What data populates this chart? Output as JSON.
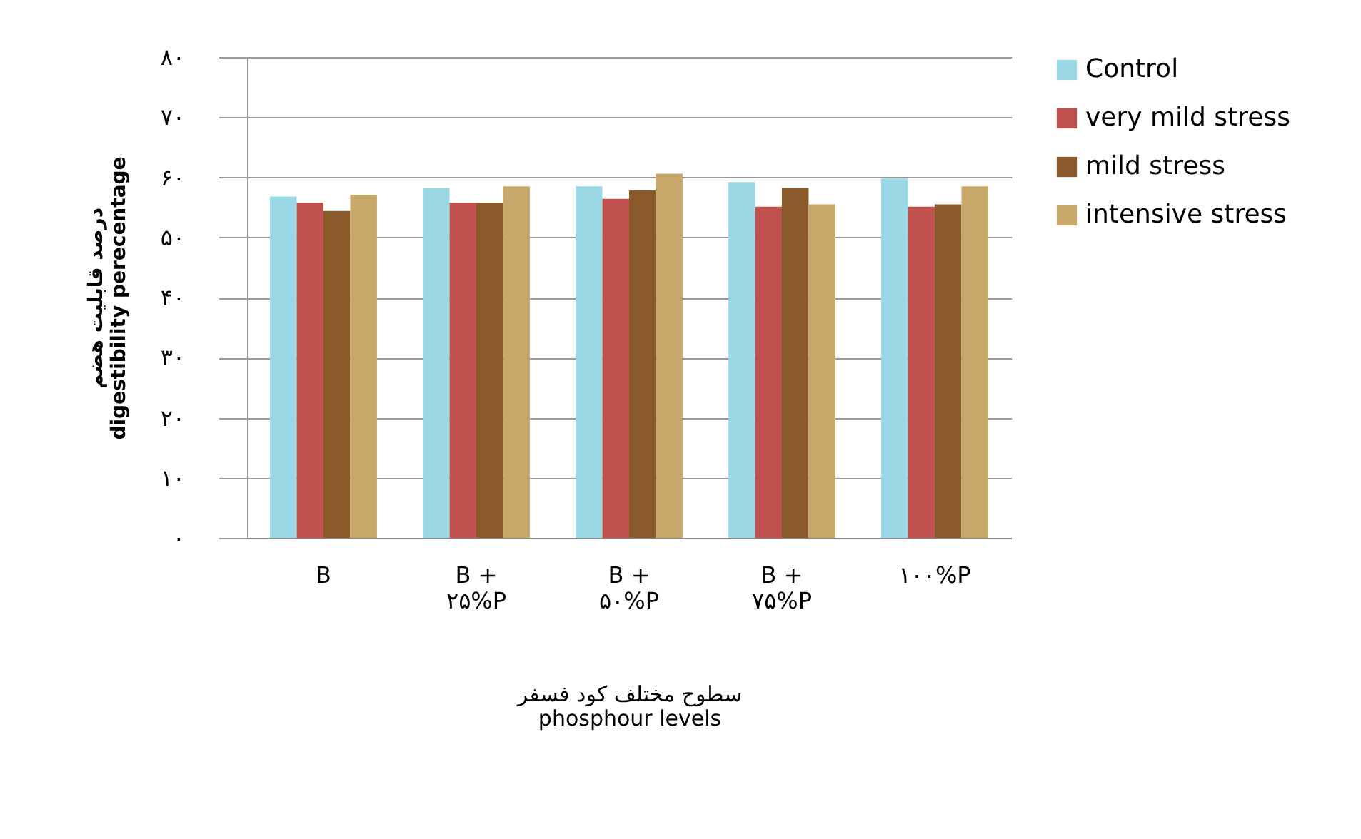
{
  "chart_data": {
    "type": "bar",
    "xlabel": "سطوح مختلف  کود فسفر\nphosphour levels",
    "ylabel": "درصد قابلیت هضم\ndigestibility perecentage",
    "categories": [
      "B",
      "B + ۲۵%P",
      "B + ۵۰%P",
      "B + ۷۵%P",
      "۱۰۰%P"
    ],
    "series": [
      {
        "name": "Control",
        "color": "#9ad8e6",
        "values": [
          56.8,
          58.2,
          58.5,
          59.2,
          59.8
        ]
      },
      {
        "name": "very mild stress",
        "color": "#c0504d",
        "values": [
          55.8,
          55.8,
          56.4,
          55.1,
          55.1
        ]
      },
      {
        "name": "mild stress",
        "color": "#8b5a2b",
        "values": [
          54.4,
          55.8,
          57.8,
          58.2,
          55.5
        ]
      },
      {
        "name": "intensive stress",
        "color": "#c8a86a",
        "values": [
          57.1,
          58.5,
          60.6,
          55.5,
          58.5
        ]
      }
    ],
    "ylim": [
      0,
      80
    ],
    "yticks": [
      {
        "value": 0,
        "label": "۰"
      },
      {
        "value": 10,
        "label": "۱۰"
      },
      {
        "value": 20,
        "label": "۲۰"
      },
      {
        "value": 30,
        "label": "۳۰"
      },
      {
        "value": 40,
        "label": "۴۰"
      },
      {
        "value": 50,
        "label": "۵۰"
      },
      {
        "value": 60,
        "label": "۶۰"
      },
      {
        "value": 70,
        "label": "۷۰"
      },
      {
        "value": 80,
        "label": "۸۰"
      }
    ],
    "grid": "y",
    "legend": "right"
  }
}
